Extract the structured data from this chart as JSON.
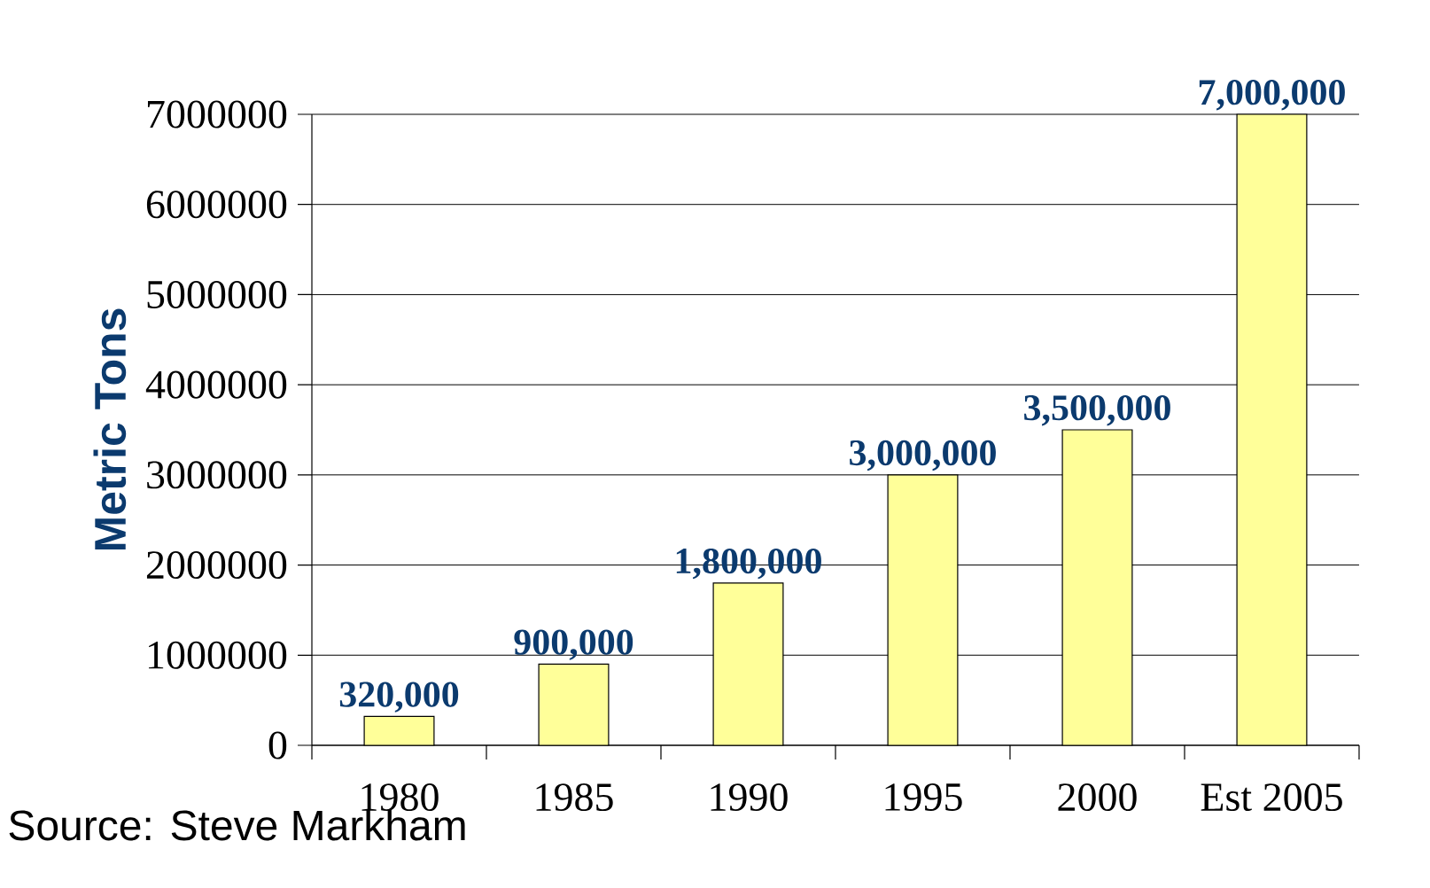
{
  "chart_data": {
    "type": "bar",
    "ylabel": "Metric Tons",
    "categories": [
      "1980",
      "1985",
      "1990",
      "1995",
      "2000",
      "Est 2005"
    ],
    "values": [
      320000,
      900000,
      1800000,
      3000000,
      3500000,
      7000000
    ],
    "value_labels": [
      "320,000",
      "900,000",
      "1,800,000",
      "3,000,000",
      "3,500,000",
      "7,000,000"
    ],
    "color": "#ffff99",
    "ylim": [
      0,
      7000000
    ],
    "yticks": [
      0,
      1000000,
      2000000,
      3000000,
      4000000,
      5000000,
      6000000,
      7000000
    ],
    "grid": "y",
    "annotations": [
      "Source:  Steve Markham"
    ]
  }
}
